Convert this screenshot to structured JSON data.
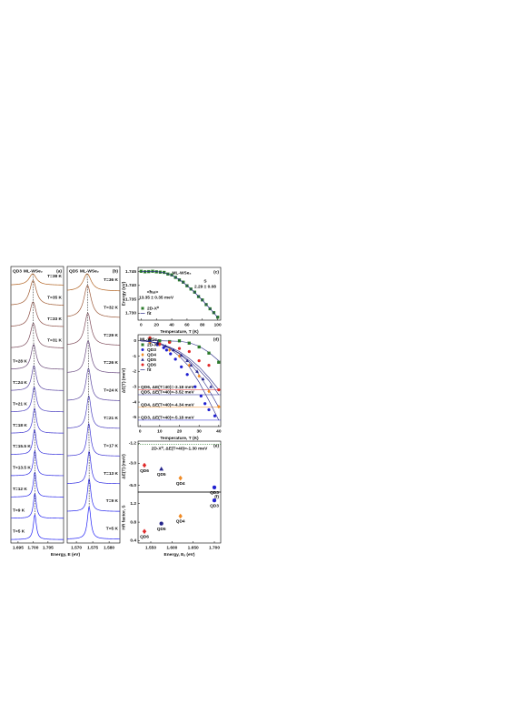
{
  "chart_data": [
    {
      "type": "spectra",
      "panel": "(a)",
      "label": "QD3",
      "sublabel": "ML-WSe₂",
      "xlabel": "Energy, E (eV)",
      "xlim": [
        1.6926,
        1.7102
      ],
      "xticks": [
        1.695,
        {
          "value": 1.7,
          "label": "1.700"
        },
        1.705
      ],
      "series": [
        {
          "name": "T=38 K",
          "color": "#b0601e",
          "peak": 1.6999,
          "fwhm": 0.003
        },
        {
          "name": "T=35 K",
          "color": "#a05a30",
          "peak": 1.7,
          "fwhm": 0.0028
        },
        {
          "name": "T=33 K",
          "color": "#8c4e45",
          "peak": 1.7,
          "fwhm": 0.0026
        },
        {
          "name": "T=31 K",
          "color": "#7a4a5a",
          "peak": 1.7001,
          "fwhm": 0.0024
        },
        {
          "name": "T=28 K",
          "color": "#6a4a78",
          "peak": 1.7002,
          "fwhm": 0.0021
        },
        {
          "name": "T=24 K",
          "color": "#5a46a0",
          "peak": 1.7003,
          "fwhm": 0.0019
        },
        {
          "name": "T=21 K",
          "color": "#4a3fbf",
          "peak": 1.7004,
          "fwhm": 0.0017
        },
        {
          "name": "T=18 K",
          "color": "#3e36d0",
          "peak": 1.7005,
          "fwhm": 0.0015
        },
        {
          "name": "T=15.5 K",
          "color": "#3530dc",
          "peak": 1.7005,
          "fwhm": 0.0014
        },
        {
          "name": "T=13.5 K",
          "color": "#2e2ae4",
          "peak": 1.7006,
          "fwhm": 0.0013
        },
        {
          "name": "T=12 K",
          "color": "#2a28ea",
          "peak": 1.7006,
          "fwhm": 0.0012
        },
        {
          "name": "T=9 K",
          "color": "#2424f0",
          "peak": 1.7006,
          "fwhm": 0.0012
        },
        {
          "name": "T=5 K",
          "color": "#2020f5",
          "peak": 1.7006,
          "fwhm": 0.0012
        }
      ]
    },
    {
      "type": "spectra",
      "panel": "(b)",
      "label": "QD5",
      "sublabel": "ML-WSe₂",
      "xlim": [
        1.5672,
        1.5833
      ],
      "xticks": [
        {
          "value": 1.57,
          "label": "1.570"
        },
        1.575,
        {
          "value": 1.58,
          "label": "1.580"
        }
      ],
      "series": [
        {
          "name": "T=36 K",
          "color": "#b0601e",
          "peak": 1.5733,
          "fwhm": 0.003
        },
        {
          "name": "T=32 K",
          "color": "#9a5636",
          "peak": 1.5734,
          "fwhm": 0.0027
        },
        {
          "name": "T=29 K",
          "color": "#7e4a58",
          "peak": 1.5735,
          "fwhm": 0.0024
        },
        {
          "name": "T=26 K",
          "color": "#6a4a80",
          "peak": 1.5736,
          "fwhm": 0.0021
        },
        {
          "name": "T=24 K",
          "color": "#5a46a0",
          "peak": 1.5737,
          "fwhm": 0.0019
        },
        {
          "name": "T=21 K",
          "color": "#4a3fbf",
          "peak": 1.5738,
          "fwhm": 0.0017
        },
        {
          "name": "T=17 K",
          "color": "#3c34d4",
          "peak": 1.5738,
          "fwhm": 0.0015
        },
        {
          "name": "T=13 K",
          "color": "#302ce2",
          "peak": 1.5739,
          "fwhm": 0.0014
        },
        {
          "name": "T=9 K",
          "color": "#2626ee",
          "peak": 1.5739,
          "fwhm": 0.0013
        },
        {
          "name": "T=5 K",
          "color": "#2020f5",
          "peak": 1.5739,
          "fwhm": 0.0013
        }
      ]
    },
    {
      "type": "scatter",
      "panel": "(c)",
      "xlabel": "Temperature, T (K)",
      "ylabel": "Energy (eV)",
      "annotations": [
        "ML-WSe₂",
        "S",
        "2.29 ± 0.08",
        "<ħω>",
        "13.35 ± 0.35 meV"
      ],
      "xlim": [
        -4,
        104
      ],
      "xticks": [
        0,
        20,
        40,
        60,
        80,
        100
      ],
      "ylim": [
        1.7275,
        1.7465
      ],
      "yticks": [
        1.745,
        {
          "value": 1.74,
          "label": "1.740"
        },
        1.735,
        {
          "value": 1.73,
          "label": "1.730"
        }
      ],
      "legend": "lower left",
      "series": [
        {
          "name": "2D-X⁰",
          "color": "#2a7a2a",
          "marker": "square",
          "x": [
            0,
            5,
            10,
            15,
            20,
            25,
            30,
            35,
            40,
            45,
            50,
            55,
            60,
            65,
            70,
            75,
            80,
            85,
            90,
            95,
            100
          ],
          "values": [
            1.7451,
            1.7449,
            1.745,
            1.7451,
            1.7449,
            1.7448,
            1.7447,
            1.7441,
            1.7438,
            1.7429,
            1.742,
            1.7412,
            1.7399,
            1.7387,
            1.7376,
            1.736,
            1.7348,
            1.7331,
            1.7316,
            1.7302,
            1.7286
          ]
        },
        {
          "name": "fit",
          "color": "#2a2a88",
          "marker": "line",
          "x": [
            0,
            10,
            20,
            30,
            40,
            50,
            60,
            70,
            80,
            90,
            100
          ],
          "values": [
            1.745,
            1.745,
            1.745,
            1.7446,
            1.7437,
            1.7421,
            1.74,
            1.7375,
            1.7347,
            1.7317,
            1.7285
          ]
        }
      ]
    },
    {
      "type": "scatter",
      "panel": "(d)",
      "xlabel": "Temperature, T (K)",
      "ylabel": "ΔE(T) (meV)",
      "xlim": [
        -1,
        41
      ],
      "xticks": [
        0,
        10,
        20,
        30,
        40
      ],
      "ylim": [
        -5.6,
        0.4
      ],
      "yticks": [
        0,
        -1,
        -2,
        -3,
        -4,
        -5
      ],
      "legend": "upper left",
      "legend_title": "ML-WSe₂",
      "fit_name": "fit",
      "fit_color": "#2a2a88",
      "fit_x": [
        0,
        5,
        10,
        15,
        20,
        25,
        30,
        35,
        40
      ],
      "series": [
        {
          "name": "2D-X⁰",
          "color": "#2a7a2a",
          "marker": "square",
          "x": [
            5,
            10,
            15,
            20,
            25,
            30,
            35,
            40
          ],
          "values": [
            0.05,
            0,
            -0.05,
            0,
            -0.15,
            -0.4,
            -0.8,
            -1.4
          ],
          "fit": [
            0,
            0,
            0,
            -0.01,
            -0.03,
            -0.12,
            -0.35,
            -0.75,
            -1.3
          ]
        },
        {
          "name": "QD3",
          "color": "#1f1fd0",
          "marker": "circle",
          "x": [
            5,
            9,
            12,
            13.5,
            15.5,
            18,
            21,
            24,
            28,
            31,
            33,
            35,
            38
          ],
          "values": [
            -0.05,
            -0.25,
            -0.45,
            -0.6,
            -0.85,
            -1.2,
            -1.7,
            -2.2,
            -3,
            -3.6,
            -4.1,
            -4.5,
            -4.9
          ],
          "fit": [
            0,
            -0.05,
            -0.2,
            -0.5,
            -1,
            -1.7,
            -2.7,
            -3.9,
            -5.18
          ]
        },
        {
          "name": "QD4",
          "color": "#f08a24",
          "marker": "diamond",
          "x": [
            5,
            10,
            15,
            20,
            25,
            30,
            35,
            40
          ],
          "values": [
            -0.1,
            -0.25,
            -0.6,
            -1,
            -1.6,
            -2.3,
            -3.3,
            -4.3
          ],
          "fit": [
            0,
            -0.05,
            -0.2,
            -0.45,
            -0.85,
            -1.4,
            -2.2,
            -3.2,
            -4.34
          ]
        },
        {
          "name": "QD5",
          "color": "#23238a",
          "marker": "triangle",
          "x": [
            5,
            9,
            13,
            17,
            21,
            24,
            26,
            29,
            32,
            36
          ],
          "values": [
            0,
            -0.1,
            -0.35,
            -0.6,
            -0.95,
            -1.3,
            -1.6,
            -2,
            -2.5,
            -3
          ],
          "fit": [
            0,
            -0.05,
            -0.2,
            -0.45,
            -0.8,
            -1.3,
            -1.9,
            -2.6,
            -3.52
          ]
        },
        {
          "name": "QD6",
          "color": "#e02828",
          "marker": "circle",
          "x": [
            5,
            10,
            15,
            20,
            25,
            30,
            35,
            40
          ],
          "values": [
            0.2,
            -0.2,
            -0.1,
            -0.5,
            -0.7,
            -1.3,
            -1.6,
            -3.2
          ],
          "fit": [
            0,
            -0.05,
            -0.15,
            -0.4,
            -0.7,
            -1.15,
            -1.7,
            -2.4,
            -3.18
          ]
        }
      ],
      "levels": [
        {
          "text": "QD6, ΔE(T=40)=-3.18 meV",
          "value": -3.18,
          "color": "#e02828"
        },
        {
          "text": "QD5, ΔE(T=40)=-3.52 meV",
          "value": -3.52,
          "color": "#23238a"
        },
        {
          "text": "QD4, ΔE(T=40)=-4.34 meV",
          "value": -4.34,
          "color": "#f08a24"
        },
        {
          "text": "QD3, ΔE(T=40)=-5.18 meV",
          "value": -5.18,
          "color": "#1f1fd0"
        }
      ]
    },
    {
      "type": "scatter",
      "panel": "(e)",
      "ylabel": "ΔE(T) (meV)",
      "point_labels": true,
      "xlim": [
        1.52,
        1.715
      ],
      "ylim": [
        -5.6,
        -1.0
      ],
      "yticks": [
        -1.2,
        {
          "value": -3,
          "label": "-3.0"
        },
        {
          "value": -5,
          "label": "-5.0"
        }
      ],
      "reference": {
        "text": "2D-X⁰, ΔE(T=40)=-1.30 meV",
        "value": -1.3,
        "color": "#2a7a2a"
      },
      "series": [
        {
          "name": "QD6",
          "color": "#e02828",
          "marker": "diamond",
          "x": [
            1.535
          ],
          "values": [
            -3.18
          ]
        },
        {
          "name": "QD5",
          "color": "#23238a",
          "marker": "triangle",
          "x": [
            1.575
          ],
          "values": [
            -3.52
          ]
        },
        {
          "name": "QD4",
          "color": "#f08a24",
          "marker": "diamond",
          "x": [
            1.62
          ],
          "values": [
            -4.34
          ]
        },
        {
          "name": "QD3",
          "color": "#1f1fd0",
          "marker": "circle",
          "x": [
            1.7
          ],
          "values": [
            -5.18
          ]
        }
      ]
    },
    {
      "type": "scatter",
      "panel": "(f)",
      "ylabel": "HR factor, S",
      "xlabel": "Energy, Eₓ (eV)",
      "point_labels": true,
      "xlim": [
        1.52,
        1.715
      ],
      "xticks": [
        {
          "value": 1.55,
          "label": "1.550"
        },
        {
          "value": 1.6,
          "label": "1.600"
        },
        {
          "value": 1.65,
          "label": "1.650"
        },
        {
          "value": 1.7,
          "label": "1.700"
        }
      ],
      "ylim": [
        0.35,
        1.45
      ],
      "yticks": [
        0.4,
        0.8,
        1.2
      ],
      "series": [
        {
          "name": "QD6",
          "color": "#e02828",
          "marker": "diamond",
          "x": [
            1.535
          ],
          "values": [
            0.6
          ]
        },
        {
          "name": "QD5",
          "color": "#23238a",
          "marker": "circle",
          "x": [
            1.575
          ],
          "values": [
            0.77
          ]
        },
        {
          "name": "QD4",
          "color": "#f08a24",
          "marker": "diamond",
          "x": [
            1.62
          ],
          "values": [
            0.93
          ]
        },
        {
          "name": "QD3",
          "color": "#1f1fd0",
          "marker": "circle",
          "x": [
            1.7
          ],
          "values": [
            1.27
          ]
        }
      ]
    }
  ]
}
